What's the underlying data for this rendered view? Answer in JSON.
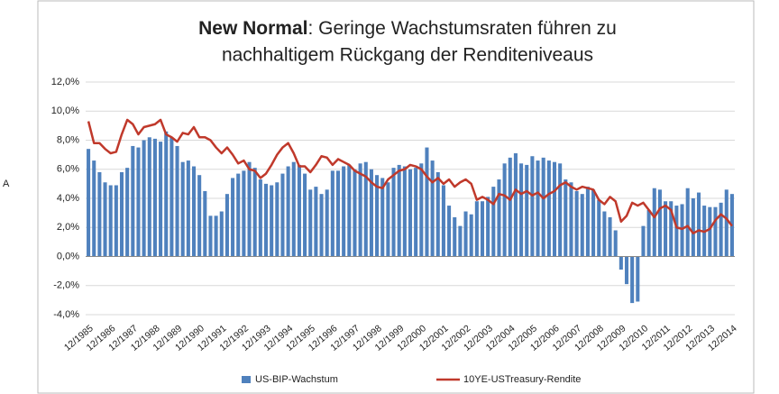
{
  "annotation": "A",
  "chart_data": {
    "type": "bar-line",
    "title": {
      "bold": "New Normal",
      "rest": ": Geringe Wachstumsraten führen zu",
      "line2": "nachhaltigem Rückgang der Renditeniveaus"
    },
    "categories": [
      "12/1985",
      null,
      null,
      null,
      "12/1986",
      null,
      null,
      null,
      "12/1987",
      null,
      null,
      null,
      "12/1988",
      null,
      null,
      null,
      "12/1989",
      null,
      null,
      null,
      "12/1990",
      null,
      null,
      null,
      "12/1991",
      null,
      null,
      null,
      "12/1992",
      null,
      null,
      null,
      "12/1993",
      null,
      null,
      null,
      "12/1994",
      null,
      null,
      null,
      "12/1995",
      null,
      null,
      null,
      "12/1996",
      null,
      null,
      null,
      "12/1997",
      null,
      null,
      null,
      "12/1998",
      null,
      null,
      null,
      "12/1999",
      null,
      null,
      null,
      "12/2000",
      null,
      null,
      null,
      "12/2001",
      null,
      null,
      null,
      "12/2002",
      null,
      null,
      null,
      "12/2003",
      null,
      null,
      null,
      "12/2004",
      null,
      null,
      null,
      "12/2005",
      null,
      null,
      null,
      "12/2006",
      null,
      null,
      null,
      "12/2007",
      null,
      null,
      null,
      "12/2008",
      null,
      null,
      null,
      "12/2009",
      null,
      null,
      null,
      "12/2010",
      null,
      null,
      null,
      "12/2011",
      null,
      null,
      null,
      "12/2012",
      null,
      null,
      null,
      "12/2013",
      null,
      null,
      null,
      "12/2014"
    ],
    "series": [
      {
        "name": "US-BIP-Wachstum",
        "kind": "bar",
        "color": "#4f81bd",
        "values": [
          7.4,
          6.6,
          5.8,
          5.1,
          4.9,
          4.9,
          5.8,
          6.1,
          7.6,
          7.5,
          8.0,
          8.2,
          8.1,
          7.9,
          8.6,
          8.2,
          7.6,
          6.5,
          6.6,
          6.2,
          5.6,
          4.5,
          2.8,
          2.8,
          3.1,
          4.3,
          5.4,
          5.7,
          5.9,
          6.5,
          6.1,
          5.3,
          5.0,
          4.9,
          5.1,
          5.7,
          6.2,
          6.5,
          6.3,
          5.7,
          4.6,
          4.8,
          4.3,
          4.6,
          5.9,
          5.9,
          6.2,
          6.3,
          6.0,
          6.4,
          6.5,
          6.0,
          5.6,
          5.4,
          5.1,
          6.1,
          6.3,
          6.2,
          6.0,
          6.1,
          6.4,
          7.5,
          6.6,
          5.8,
          4.9,
          3.5,
          2.7,
          2.1,
          3.1,
          2.9,
          3.8,
          3.8,
          4.1,
          4.8,
          5.3,
          6.4,
          6.8,
          7.1,
          6.4,
          6.3,
          6.9,
          6.6,
          6.8,
          6.6,
          6.5,
          6.4,
          5.3,
          5.1,
          4.5,
          4.3,
          4.8,
          4.6,
          3.9,
          3.1,
          2.7,
          1.8,
          -0.9,
          -1.9,
          -3.2,
          -3.1,
          2.1,
          3.2,
          4.7,
          4.6,
          3.8,
          3.8,
          3.5,
          3.6,
          4.7,
          4.0,
          4.4,
          3.5,
          3.4,
          3.4,
          3.7,
          4.6,
          4.3
        ]
      },
      {
        "name": "10YE-USTreasury-Rendite",
        "kind": "line",
        "color": "#c0392b",
        "values": [
          9.3,
          7.8,
          7.8,
          7.4,
          7.1,
          7.2,
          8.4,
          9.4,
          9.1,
          8.4,
          8.9,
          9.0,
          9.1,
          9.4,
          8.4,
          8.2,
          7.9,
          8.5,
          8.4,
          8.9,
          8.2,
          8.2,
          8.0,
          7.5,
          7.1,
          7.5,
          7.0,
          6.4,
          6.6,
          6.0,
          5.9,
          5.4,
          5.7,
          6.3,
          7.0,
          7.5,
          7.8,
          7.1,
          6.2,
          6.2,
          5.8,
          6.3,
          6.9,
          6.8,
          6.3,
          6.7,
          6.5,
          6.3,
          5.9,
          5.7,
          5.5,
          5.1,
          4.8,
          4.7,
          5.3,
          5.6,
          5.9,
          6.0,
          6.3,
          6.2,
          6.0,
          5.5,
          5.1,
          5.4,
          5.0,
          5.3,
          4.8,
          5.1,
          5.3,
          5.0,
          3.9,
          4.1,
          3.9,
          3.6,
          4.3,
          4.2,
          3.9,
          4.6,
          4.3,
          4.5,
          4.2,
          4.4,
          4.0,
          4.3,
          4.5,
          4.9,
          5.1,
          4.8,
          4.6,
          4.8,
          4.7,
          4.6,
          3.9,
          3.6,
          4.1,
          3.8,
          2.4,
          2.8,
          3.7,
          3.5,
          3.7,
          3.2,
          2.7,
          3.3,
          3.5,
          3.2,
          2.0,
          1.9,
          2.1,
          1.6,
          1.8,
          1.7,
          1.9,
          2.5,
          2.9,
          2.6,
          2.1
        ]
      }
    ],
    "ylim": [
      -4,
      12
    ],
    "yticks": [
      {
        "value": -4,
        "label": "-4,0%"
      },
      {
        "value": -2,
        "label": "-2,0%"
      },
      {
        "value": 0,
        "label": "0,0%"
      },
      {
        "value": 2,
        "label": "2,0%"
      },
      {
        "value": 4,
        "label": "4,0%"
      },
      {
        "value": 6,
        "label": "6,0%"
      },
      {
        "value": 8,
        "label": "8,0%"
      },
      {
        "value": 10,
        "label": "10,0%"
      },
      {
        "value": 12,
        "label": "12,0%"
      }
    ],
    "grid": true,
    "legend": "bottom"
  }
}
